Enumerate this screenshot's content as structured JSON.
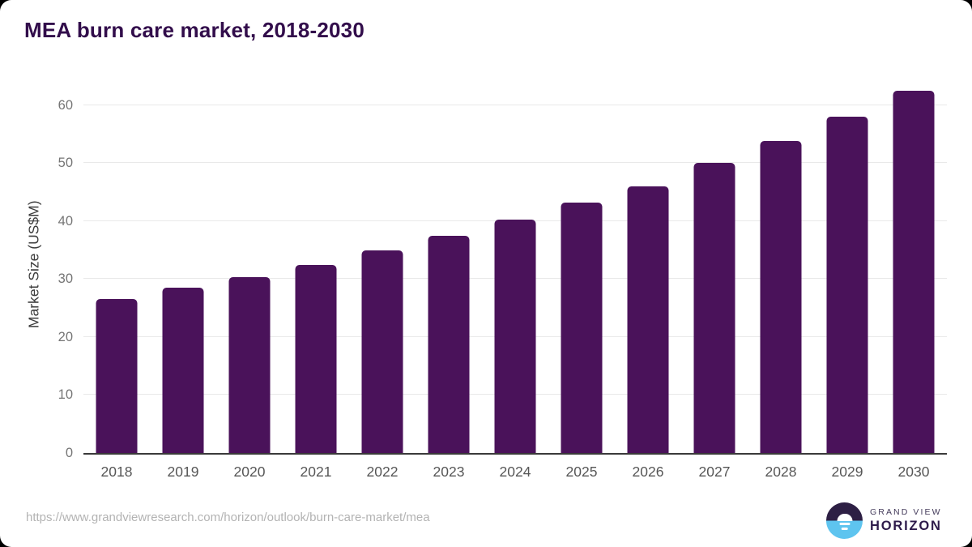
{
  "page": {
    "source_url": "https://www.grandviewresearch.com/horizon/outlook/burn-care-market/mea"
  },
  "logo": {
    "grand_view": "GRAND VIEW",
    "horizon": "HORIZON"
  },
  "chart_data": {
    "type": "bar",
    "title": "MEA burn care market, 2018-2030",
    "categories": [
      "2018",
      "2019",
      "2020",
      "2021",
      "2022",
      "2023",
      "2024",
      "2025",
      "2026",
      "2027",
      "2028",
      "2029",
      "2030"
    ],
    "values": [
      26.5,
      28.5,
      30.3,
      32.5,
      35.0,
      37.4,
      40.3,
      43.2,
      46.0,
      50.0,
      53.8,
      58.0,
      62.5
    ],
    "xlabel": "",
    "ylabel": "Market Size (US$M)",
    "ylim": [
      0,
      65
    ],
    "yticks": [
      0,
      10,
      20,
      30,
      40,
      50,
      60
    ],
    "grid": true,
    "legend": false,
    "colors": {
      "bar": "#4a125a",
      "title": "#320d4b",
      "y_tick_label": "#757575",
      "axis_label": "#3d3d3d",
      "x_tick_label": "#565656",
      "gridline": "#e9e9e9",
      "axis_line": "#3a3a3a",
      "url_text": "#b3b3b3",
      "logo_dark": "#2d1f44",
      "logo_blue": "#5ec4ef",
      "background": "#ffffff"
    }
  }
}
